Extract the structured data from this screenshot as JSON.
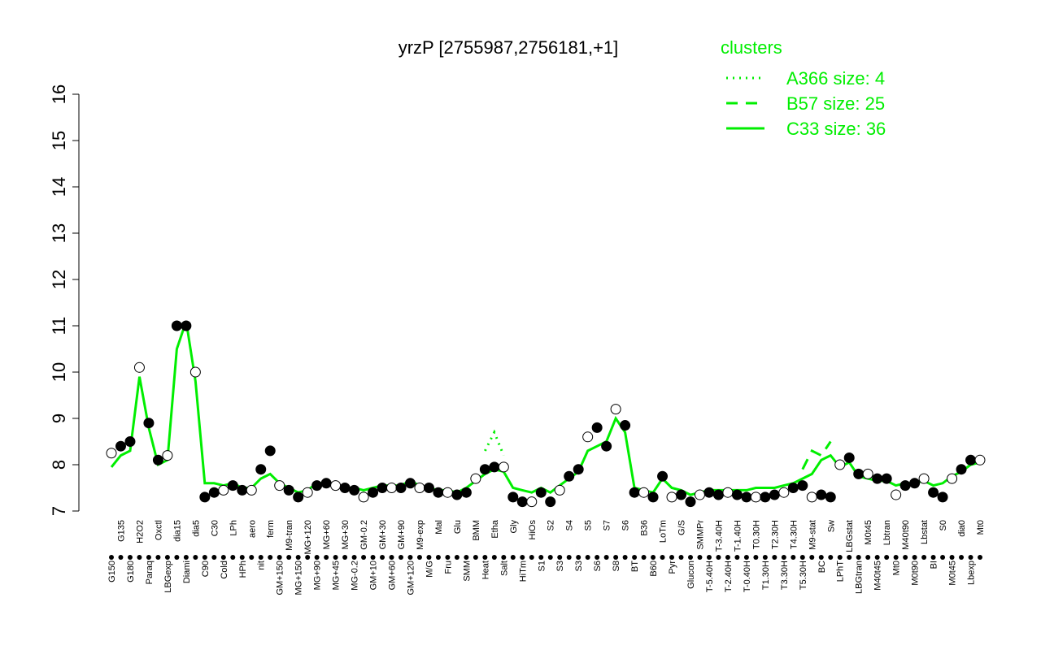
{
  "chart_data": {
    "type": "line",
    "title": "yrzP [2755987,2756181,+1]",
    "legend_title": "clusters",
    "legend_position": "top-right",
    "ylim": [
      7,
      16
    ],
    "yticks": [
      7,
      8,
      9,
      10,
      11,
      12,
      13,
      14,
      15,
      16
    ],
    "categories": [
      "G150",
      "G135",
      "G180",
      "H2O2",
      "Paraq",
      "Oxctl",
      "LBGexp",
      "dia15",
      "Diami",
      "dia5",
      "C90",
      "C30",
      "Cold",
      "LPh",
      "HPh",
      "aero",
      "nit",
      "ferm",
      "GM+150",
      "M9-tran",
      "MG+150",
      "MG+120",
      "MG+90",
      "MG+60",
      "MG+45",
      "MG+30",
      "MG-0.2",
      "GM-0.2",
      "GM+10",
      "GM+30",
      "GM+60",
      "GM+90",
      "GM+120",
      "M9-exp",
      "M/G",
      "Mal",
      "Fru",
      "Glu",
      "SMM",
      "BMM",
      "Heat",
      "Etha",
      "Salt",
      "Gly",
      "HiTm",
      "HiOs",
      "S1",
      "S2",
      "S3",
      "S4",
      "S3",
      "S5",
      "S6",
      "S7",
      "S8",
      "S6",
      "BT",
      "B36",
      "B60",
      "LoTm",
      "Pyr",
      "G/S",
      "Glucon",
      "SMMPr",
      "T-5.40H",
      "T-3.40H",
      "T-2.40H",
      "T-1.40H",
      "T-0.40H",
      "T0.30H",
      "T1.30H",
      "T2.30H",
      "T3.30H",
      "T4.30H",
      "T5.30H",
      "M9-stat",
      "BC",
      "Sw",
      "LPhT",
      "LBGstat",
      "LBGtran",
      "M0t45",
      "M40t45",
      "Lbtran",
      "Mt0",
      "M40t90",
      "M0t90",
      "Lbstat",
      "BI",
      "S0",
      "M0t45",
      "dia0",
      "Lbexp",
      "Mt0"
    ],
    "values": [
      8.25,
      8.4,
      8.5,
      10.1,
      8.9,
      8.1,
      8.2,
      11.0,
      11.0,
      10.0,
      7.3,
      7.4,
      7.45,
      7.55,
      7.45,
      7.45,
      7.9,
      8.3,
      7.55,
      7.45,
      7.3,
      7.4,
      7.55,
      7.6,
      7.55,
      7.5,
      7.45,
      7.3,
      7.4,
      7.5,
      7.5,
      7.5,
      7.6,
      7.5,
      7.5,
      7.4,
      7.4,
      7.35,
      7.4,
      7.7,
      7.9,
      7.95,
      7.95,
      7.3,
      7.2,
      7.2,
      7.4,
      7.2,
      7.45,
      7.75,
      7.9,
      8.6,
      8.8,
      8.4,
      9.2,
      8.85,
      7.4,
      7.4,
      7.3,
      7.75,
      7.3,
      7.35,
      7.2,
      7.35,
      7.4,
      7.35,
      7.4,
      7.35,
      7.3,
      7.3,
      7.3,
      7.35,
      7.4,
      7.5,
      7.55,
      7.3,
      7.35,
      7.3,
      8.0,
      8.15,
      7.8,
      7.8,
      7.7,
      7.7,
      7.35,
      7.55,
      7.6,
      7.7,
      7.4,
      7.3,
      7.7,
      7.9,
      8.1,
      8.1
    ],
    "series": [
      {
        "name": "A366 size: 4",
        "color": "#00ee00",
        "dash": "dotted",
        "values": [
          null,
          null,
          null,
          null,
          null,
          null,
          null,
          null,
          null,
          null,
          null,
          null,
          null,
          null,
          null,
          null,
          null,
          null,
          null,
          null,
          null,
          null,
          null,
          null,
          null,
          null,
          null,
          null,
          null,
          null,
          null,
          null,
          null,
          null,
          null,
          null,
          null,
          null,
          null,
          null,
          8.3,
          8.7,
          8.2,
          null,
          null,
          null,
          null,
          null,
          null,
          null,
          null,
          null,
          null,
          null,
          null,
          null,
          null,
          null,
          null,
          null,
          null,
          null,
          null,
          null,
          null,
          null,
          null,
          null,
          null,
          null,
          null,
          null,
          null,
          null,
          null,
          null,
          null,
          null,
          null,
          null,
          null,
          null,
          null,
          null,
          null,
          null,
          null,
          null,
          null,
          null,
          null,
          null,
          null,
          null
        ]
      },
      {
        "name": "B57 size: 25",
        "color": "#00ee00",
        "dash": "dashed",
        "values": [
          null,
          null,
          null,
          null,
          null,
          null,
          null,
          null,
          null,
          null,
          null,
          null,
          null,
          null,
          null,
          null,
          null,
          null,
          null,
          null,
          null,
          null,
          null,
          null,
          null,
          null,
          null,
          null,
          null,
          null,
          null,
          null,
          null,
          null,
          null,
          null,
          null,
          null,
          null,
          null,
          null,
          null,
          null,
          null,
          null,
          null,
          null,
          null,
          null,
          null,
          null,
          null,
          null,
          null,
          null,
          null,
          null,
          null,
          null,
          null,
          null,
          null,
          null,
          null,
          null,
          null,
          null,
          null,
          null,
          null,
          null,
          null,
          null,
          null,
          7.9,
          8.3,
          8.2,
          8.5,
          null,
          null,
          null,
          null,
          null,
          null,
          null,
          null,
          null,
          null,
          null,
          null,
          null,
          null,
          null,
          null
        ]
      },
      {
        "name": "C33 size: 36",
        "color": "#00ee00",
        "dash": "solid",
        "values": [
          7.95,
          8.2,
          8.3,
          9.9,
          8.8,
          8.0,
          8.1,
          10.5,
          11.1,
          9.8,
          7.6,
          7.6,
          7.55,
          7.6,
          7.5,
          7.5,
          7.7,
          7.8,
          7.6,
          7.5,
          7.4,
          7.45,
          7.6,
          7.6,
          7.55,
          7.5,
          7.5,
          7.45,
          7.5,
          7.55,
          7.55,
          7.55,
          7.65,
          7.55,
          7.5,
          7.45,
          7.45,
          7.4,
          7.5,
          7.65,
          7.8,
          7.9,
          7.85,
          7.5,
          7.45,
          7.4,
          7.5,
          7.4,
          7.55,
          7.7,
          7.85,
          8.3,
          8.4,
          8.5,
          9.0,
          8.7,
          7.5,
          7.45,
          7.4,
          7.7,
          7.5,
          7.45,
          7.35,
          7.4,
          7.45,
          7.45,
          7.45,
          7.45,
          7.45,
          7.5,
          7.5,
          7.5,
          7.55,
          7.6,
          7.7,
          7.8,
          8.1,
          8.2,
          7.95,
          8.05,
          7.75,
          7.7,
          7.65,
          7.65,
          7.55,
          7.6,
          7.6,
          7.65,
          7.55,
          7.6,
          7.75,
          7.85,
          8.0,
          8.05
        ]
      }
    ]
  }
}
